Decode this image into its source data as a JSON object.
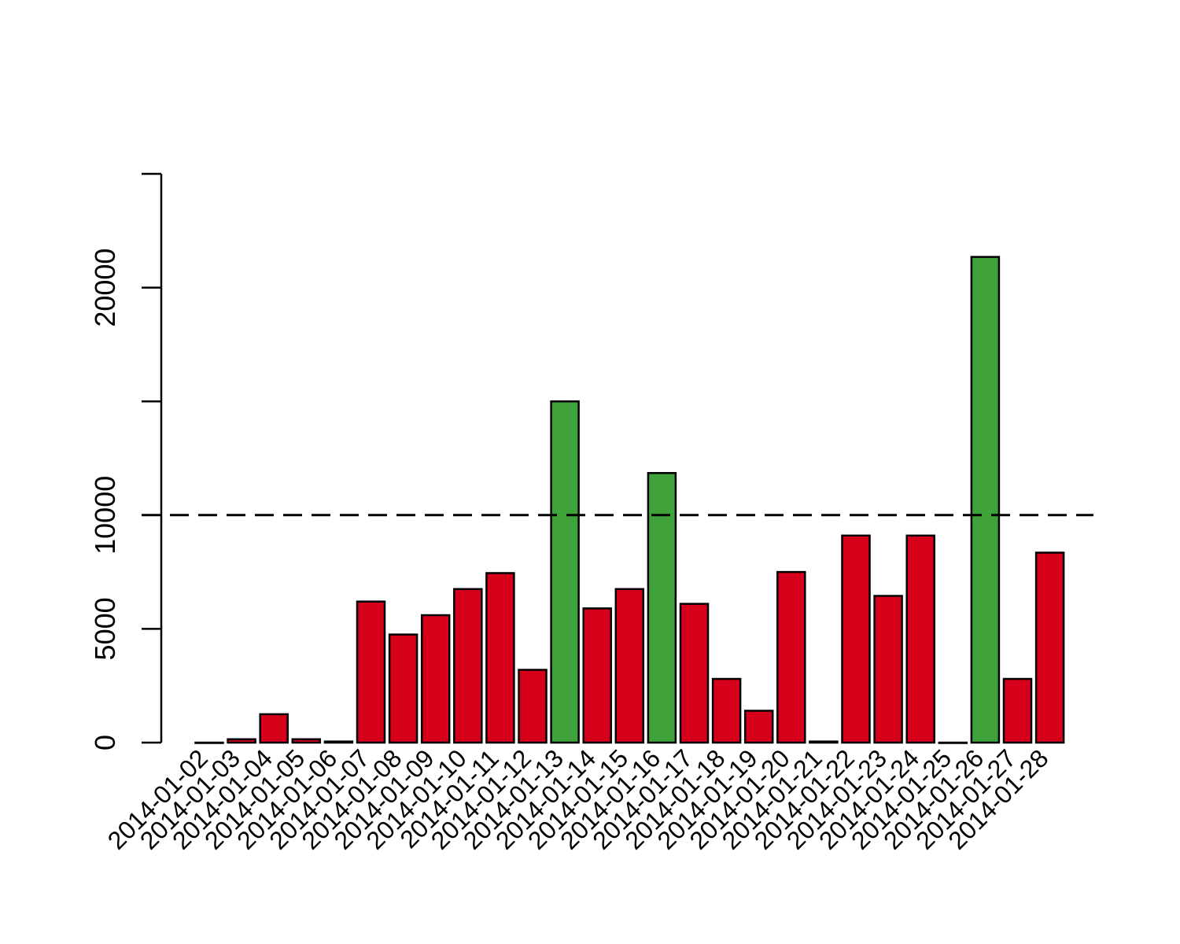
{
  "chart_data": {
    "type": "bar",
    "title": "",
    "xlabel": "",
    "ylabel": "",
    "ylim": [
      0,
      25000
    ],
    "yticks": [
      0,
      5000,
      10000,
      15000,
      20000,
      25000
    ],
    "ytick_labels": [
      "0",
      "5000",
      "10000",
      "",
      "20000",
      ""
    ],
    "grid": false,
    "legend": "none",
    "threshold": 10000,
    "colors": {
      "above": "#3fa23a",
      "below": "#d7001a",
      "border": "#000000"
    },
    "tick_labels": [
      "2014-01-02",
      "2014-01-03",
      "2014-01-04",
      "2014-01-05",
      "2014-01-06",
      "2014-01-07",
      "2014-01-08",
      "2014-01-09",
      "2014-01-10",
      "2014-01-11",
      "2014-01-12",
      "2014-01-13",
      "2014-01-14",
      "2014-01-15",
      "2014-01-16",
      "2014-01-17",
      "2014-01-18",
      "2014-01-19",
      "2014-01-20",
      "2014-01-21",
      "2014-01-22",
      "2014-01-23",
      "2014-01-24",
      "2014-01-25",
      "2014-01-26",
      "2014-01-27",
      "2014-01-28"
    ],
    "values": [
      0,
      150,
      1250,
      150,
      50,
      6200,
      4750,
      5600,
      6750,
      7450,
      3200,
      15000,
      5900,
      6750,
      11850,
      6100,
      2800,
      1400,
      7500,
      50,
      9100,
      6450,
      9100,
      0,
      21350,
      2800,
      8350
    ]
  }
}
